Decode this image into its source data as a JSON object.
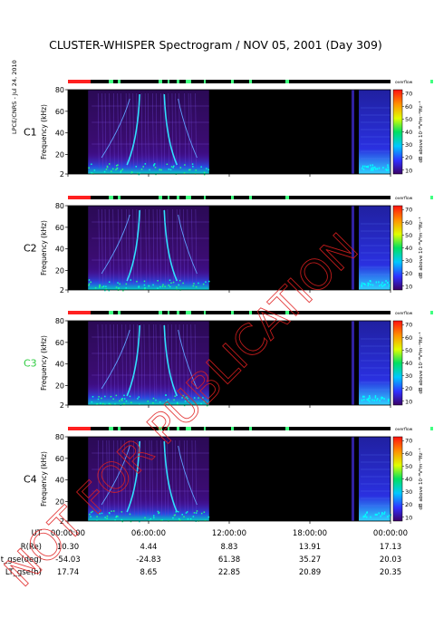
{
  "title": "CLUSTER-WHISPER Spectrogram / NOV 05, 2001 (Day 309)",
  "side_credit": "LPCE/CNRS - Jul 24, 2010",
  "watermark": "NOT FOR PUBLICATION",
  "ylabel": "Frequency (kHz)",
  "colorbar": {
    "label": "dB above 10⁻⁸V²m⁻²Hz⁻¹",
    "top_label": "overflow",
    "ticks": [
      10,
      20,
      30,
      40,
      50,
      60,
      70
    ]
  },
  "colors": {
    "mode_bar_red": "#ff2020",
    "mode_bar_green": "#40ff80",
    "mode_bar_black": "#000000",
    "c3_label": "#2ecc40",
    "background_plasma": "#1a0033"
  },
  "ephemeris": {
    "row_labels": [
      "UT",
      "R(Re)",
      "Lat_gse(deg)",
      "LT_gse(h)"
    ],
    "columns": [
      {
        "UT": "00:00:00",
        "R": "10.30",
        "Lat": "-54.03",
        "LT": "17.74"
      },
      {
        "UT": "06:00:00",
        "R": "4.44",
        "Lat": "-24.83",
        "LT": "8.65"
      },
      {
        "UT": "12:00:00",
        "R": "8.83",
        "Lat": "61.38",
        "LT": "22.85"
      },
      {
        "UT": "18:00:00",
        "R": "13.91",
        "Lat": "35.27",
        "LT": "20.89"
      },
      {
        "UT": "00:00:00",
        "R": "17.13",
        "Lat": "20.03",
        "LT": "20.35"
      }
    ]
  },
  "chart_data": [
    {
      "type": "heatmap",
      "spacecraft": "C1",
      "x_range_hours": [
        0,
        24
      ],
      "ylim": [
        2,
        80
      ],
      "y_ticks": [
        2,
        20,
        40,
        60,
        80
      ],
      "data_intervals_hours": [
        [
          1.5,
          10.5
        ],
        [
          21.1,
          24
        ]
      ],
      "color_scale_db": [
        10,
        70
      ]
    },
    {
      "type": "heatmap",
      "spacecraft": "C2",
      "x_range_hours": [
        0,
        24
      ],
      "ylim": [
        2,
        80
      ],
      "y_ticks": [
        2,
        20,
        40,
        60,
        80
      ],
      "data_intervals_hours": [
        [
          1.5,
          10.5
        ],
        [
          21.1,
          24
        ]
      ],
      "color_scale_db": [
        10,
        70
      ]
    },
    {
      "type": "heatmap",
      "spacecraft": "C3",
      "x_range_hours": [
        0,
        24
      ],
      "ylim": [
        2,
        80
      ],
      "y_ticks": [
        2,
        20,
        40,
        60,
        80
      ],
      "data_intervals_hours": [
        [
          1.5,
          10.5
        ],
        [
          21.1,
          24
        ]
      ],
      "color_scale_db": [
        10,
        70
      ]
    },
    {
      "type": "heatmap",
      "spacecraft": "C4",
      "x_range_hours": [
        0,
        24
      ],
      "ylim": [
        2,
        80
      ],
      "y_ticks": [
        2,
        20,
        40,
        60,
        80
      ],
      "data_intervals_hours": [
        [
          1.5,
          10.5
        ],
        [
          21.1,
          24
        ]
      ],
      "color_scale_db": [
        10,
        70
      ]
    }
  ]
}
